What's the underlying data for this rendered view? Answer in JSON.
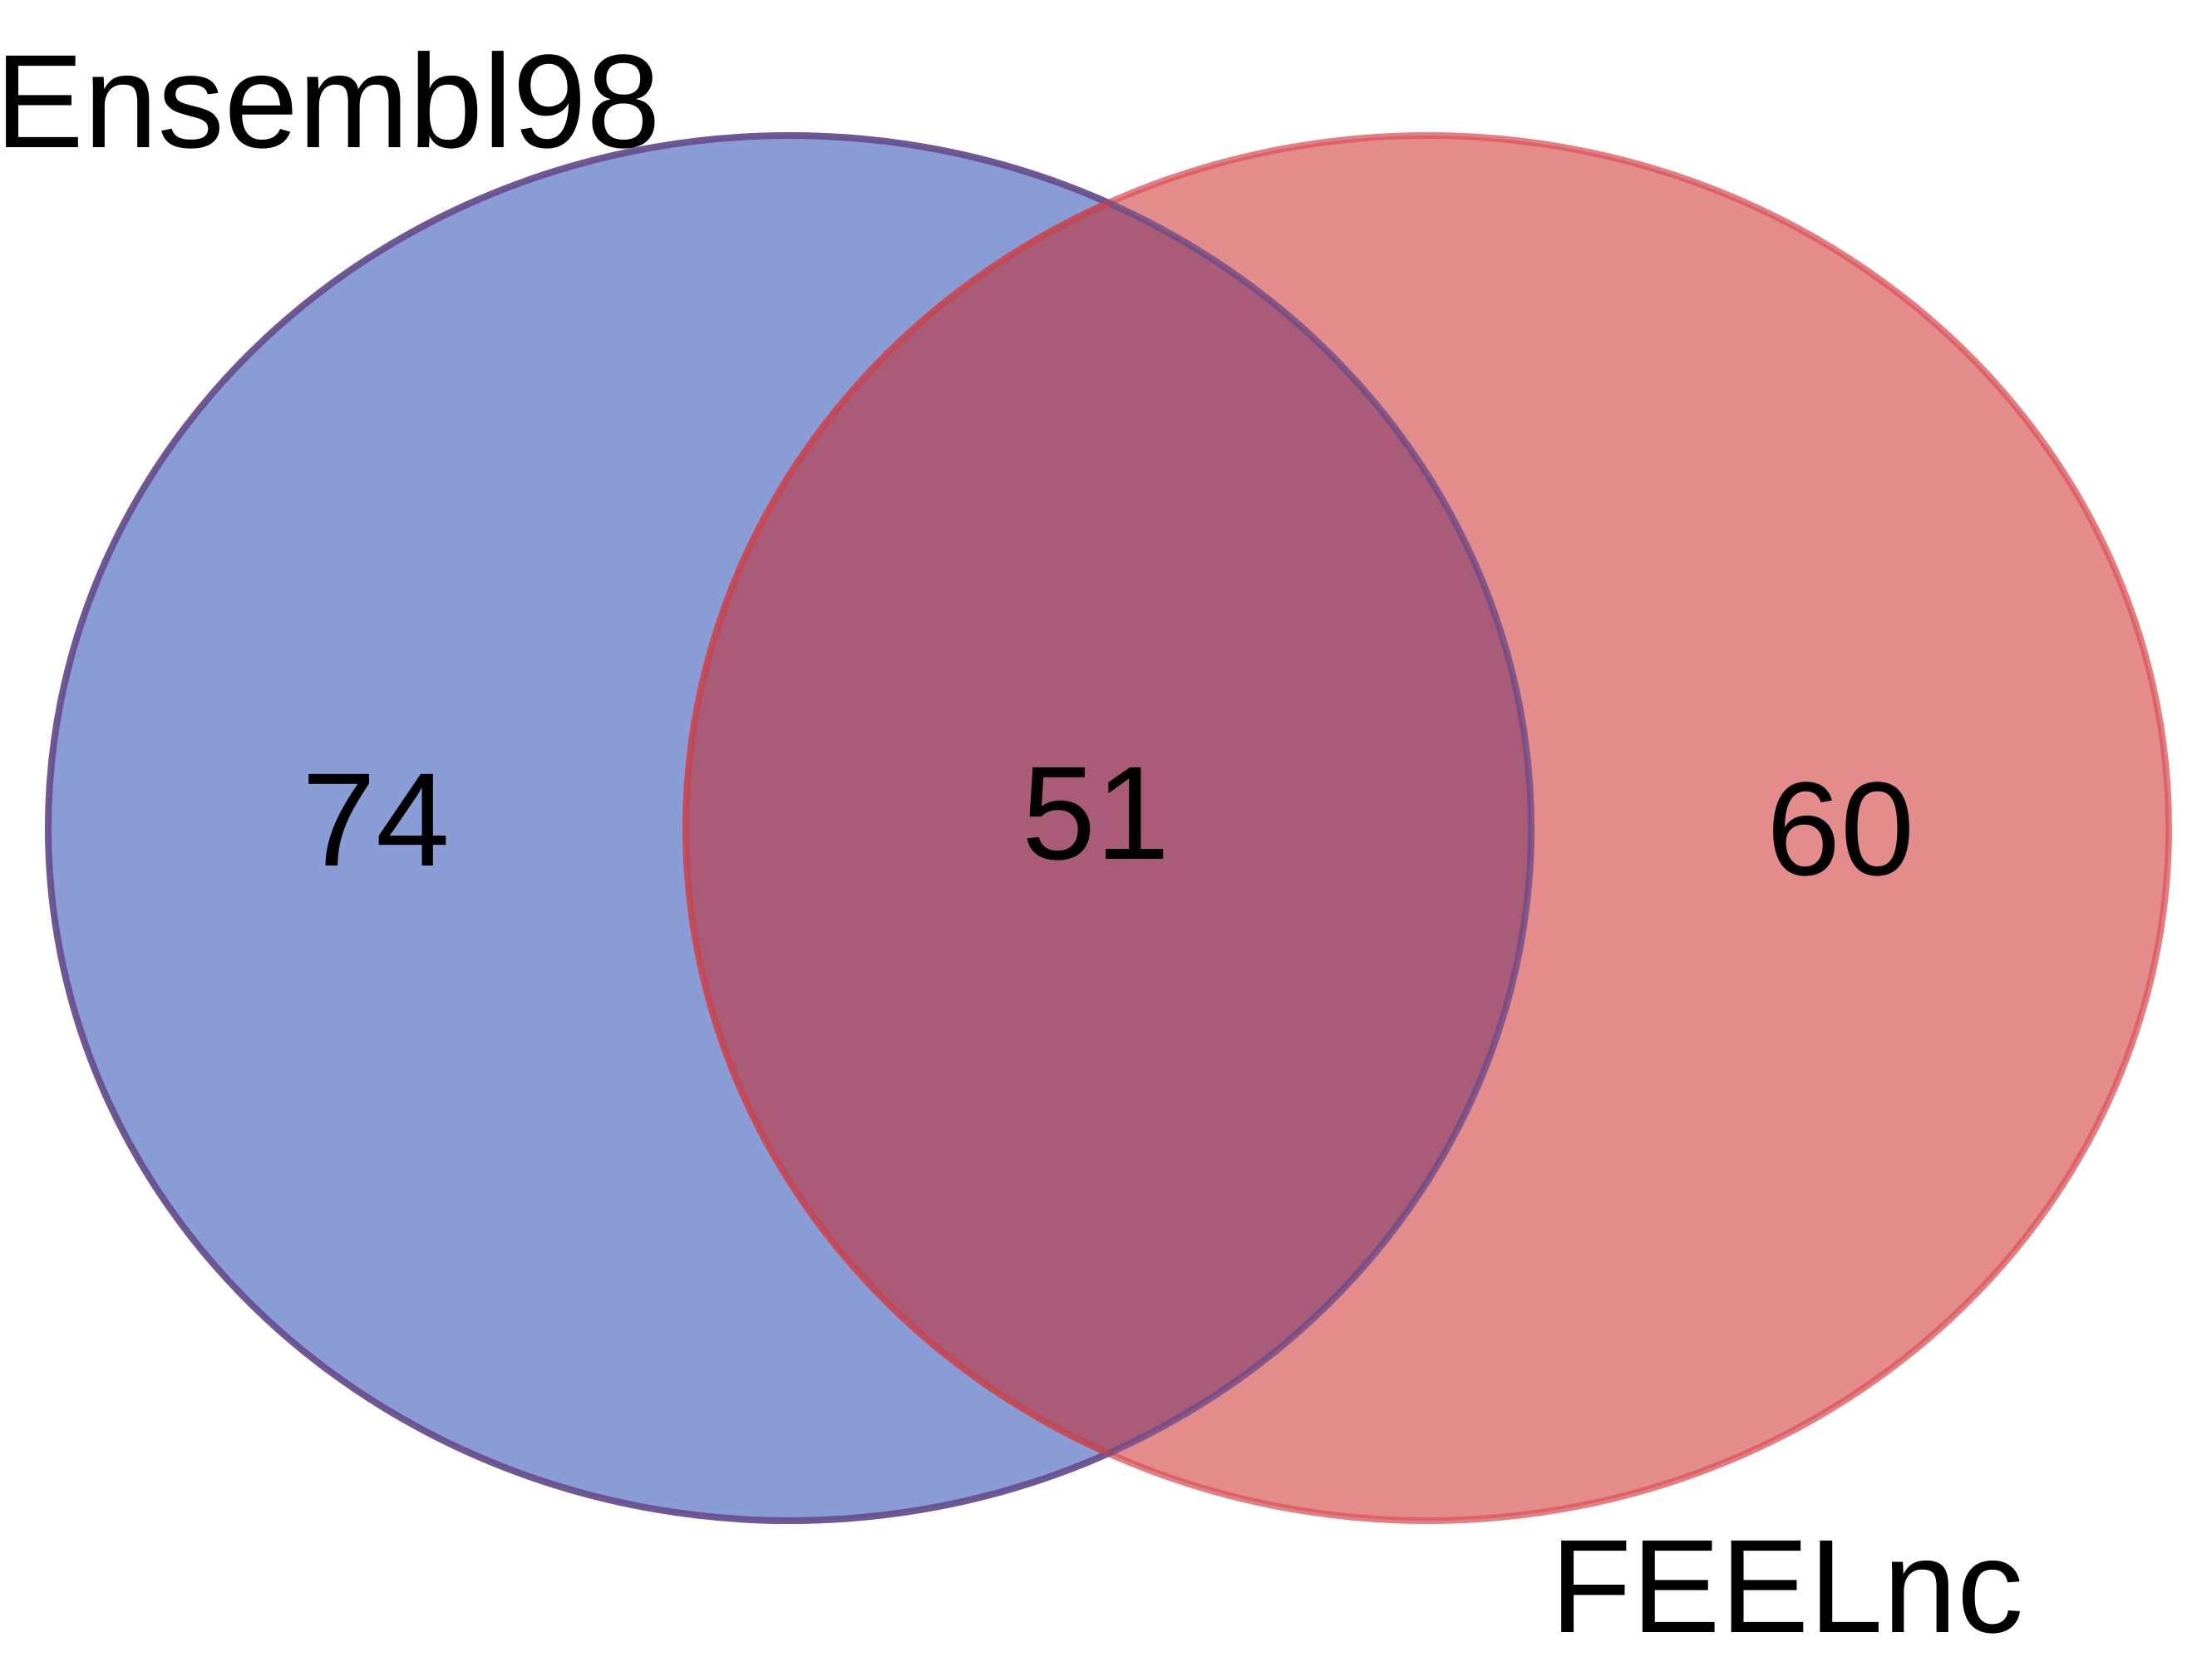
{
  "venn": {
    "sets": [
      {
        "name": "Ensembl98",
        "color": "#4f6bc4",
        "fill": "#8a9cd6"
      },
      {
        "name": "FEELnc",
        "color": "#d9545a",
        "fill": "#e48b8c"
      }
    ],
    "counts": {
      "ensembl_only": "74",
      "intersection": "51",
      "feelnc_only": "60"
    },
    "intersection_fill": "#a95b77"
  }
}
